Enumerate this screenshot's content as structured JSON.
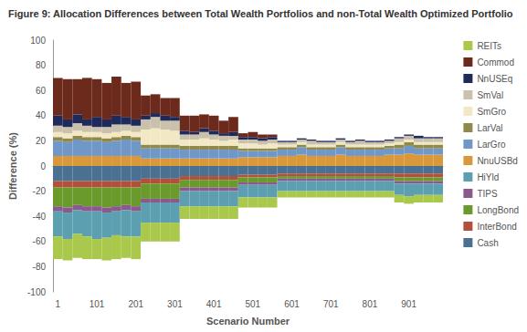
{
  "chart_data": {
    "type": "bar",
    "title": "Figure 9: Allocation Differences between Total Wealth Portfolios and non-Total Wealth Optimized Portfolio",
    "x_label": "Scenario Number",
    "y_label": "Difference (%)",
    "categories": [
      "1",
      null,
      null,
      null,
      "101",
      null,
      null,
      null,
      "201",
      null,
      null,
      null,
      "301",
      null,
      null,
      null,
      "401",
      null,
      null,
      null,
      "501",
      null,
      null,
      null,
      "601",
      null,
      null,
      null,
      "701",
      null,
      null,
      null,
      "801",
      null,
      null,
      null,
      "901",
      null,
      null,
      null
    ],
    "series": [
      {
        "name": "REITs",
        "color": "#a9c84c",
        "values": [
          -18,
          -17,
          -19,
          -18,
          -16,
          -18,
          -19,
          -17,
          -18,
          -15,
          -15,
          -15,
          -15,
          -10,
          -10,
          -10,
          -10,
          -10,
          -10,
          -8,
          -8,
          -8,
          -8,
          -5,
          -5,
          -5,
          -5,
          -5,
          -5,
          -5,
          -5,
          -5,
          -5,
          -5,
          -5,
          -6,
          -6,
          -6,
          -6,
          -6
        ]
      },
      {
        "name": "Commod",
        "color": "#6b2a1c",
        "values": [
          30,
          32,
          28,
          33,
          30,
          29,
          31,
          27,
          30,
          16,
          15,
          14,
          15,
          12,
          13,
          11,
          12,
          10,
          12,
          3,
          4,
          3,
          2,
          0,
          0,
          0,
          0,
          0,
          0,
          0,
          0,
          0,
          0,
          0,
          0,
          0,
          0,
          0,
          0,
          0
        ]
      },
      {
        "name": "NnUSEq",
        "color": "#1f2a5c",
        "values": [
          8,
          6,
          7,
          5,
          8,
          6,
          7,
          6,
          5,
          3,
          3,
          4,
          3,
          3,
          2,
          3,
          3,
          2,
          3,
          2,
          2,
          2,
          2,
          1,
          1,
          1,
          1,
          1,
          1,
          1,
          1,
          1,
          1,
          1,
          1,
          1,
          1,
          2,
          1,
          1
        ]
      },
      {
        "name": "SmVal",
        "color": "#c9c1ab",
        "values": [
          5,
          5,
          6,
          5,
          4,
          5,
          6,
          5,
          5,
          8,
          9,
          7,
          8,
          4,
          4,
          5,
          4,
          4,
          3,
          3,
          3,
          3,
          3,
          2,
          2,
          2,
          3,
          2,
          2,
          2,
          2,
          3,
          2,
          2,
          2,
          3,
          3,
          3,
          3,
          3
        ]
      },
      {
        "name": "SmGro",
        "color": "#f3e8c4",
        "values": [
          4,
          4,
          4,
          4,
          4,
          4,
          4,
          4,
          4,
          12,
          13,
          12,
          11,
          5,
          5,
          6,
          5,
          4,
          5,
          4,
          4,
          3,
          4,
          2,
          2,
          2,
          2,
          2,
          2,
          2,
          2,
          2,
          2,
          2,
          2,
          2,
          2,
          2,
          2,
          2
        ]
      },
      {
        "name": "LarVal",
        "color": "#8f8a4c",
        "values": [
          3,
          3,
          3,
          3,
          3,
          3,
          3,
          3,
          3,
          3,
          3,
          3,
          3,
          3,
          3,
          3,
          3,
          3,
          3,
          2,
          2,
          2,
          2,
          2,
          2,
          2,
          2,
          2,
          2,
          2,
          2,
          2,
          2,
          2,
          2,
          3,
          3,
          3,
          3,
          3
        ]
      },
      {
        "name": "LarGro",
        "color": "#6f98c9",
        "values": [
          12,
          11,
          13,
          12,
          12,
          11,
          12,
          13,
          12,
          8,
          8,
          8,
          8,
          7,
          7,
          7,
          7,
          7,
          7,
          5,
          5,
          5,
          5,
          5,
          5,
          6,
          5,
          5,
          5,
          6,
          5,
          5,
          5,
          5,
          5,
          5,
          6,
          5,
          5,
          5
        ]
      },
      {
        "name": "NnuUSBd",
        "color": "#d9993a",
        "values": [
          8,
          8,
          8,
          8,
          8,
          8,
          8,
          8,
          8,
          6,
          6,
          6,
          6,
          6,
          6,
          6,
          6,
          6,
          6,
          7,
          7,
          7,
          7,
          8,
          8,
          9,
          8,
          8,
          8,
          9,
          8,
          8,
          8,
          8,
          9,
          9,
          10,
          9,
          9,
          9
        ]
      },
      {
        "name": "HiYld",
        "color": "#5b9fb1",
        "values": [
          -20,
          -21,
          -19,
          -20,
          -22,
          -20,
          -19,
          -21,
          -20,
          -16,
          -16,
          -16,
          -16,
          -12,
          -12,
          -12,
          -12,
          -12,
          -12,
          -10,
          -10,
          -10,
          -10,
          -8,
          -8,
          -8,
          -8,
          -8,
          -8,
          -8,
          -8,
          -8,
          -8,
          -8,
          -8,
          -9,
          -10,
          -9,
          -9,
          -9
        ]
      },
      {
        "name": "TIPS",
        "color": "#8a5a8c",
        "values": [
          -4,
          -4,
          -4,
          -4,
          -4,
          -4,
          -4,
          -4,
          -4,
          -3,
          -3,
          -3,
          -3,
          -3,
          -3,
          -3,
          -3,
          -3,
          -3,
          -2,
          -2,
          -2,
          -2,
          -2,
          -2,
          -2,
          -2,
          -2,
          -2,
          -2,
          -2,
          -2,
          -2,
          -2,
          -2,
          -2,
          -2,
          -2,
          -2,
          -2
        ]
      },
      {
        "name": "LongBond",
        "color": "#6a9a2c",
        "values": [
          -15,
          -16,
          -14,
          -15,
          -15,
          -16,
          -15,
          -14,
          -15,
          -12,
          -12,
          -12,
          -12,
          -6,
          -6,
          -6,
          -6,
          -6,
          -6,
          -4,
          -4,
          -4,
          -4,
          -2,
          -2,
          -2,
          -2,
          -2,
          -2,
          -2,
          -2,
          -2,
          -2,
          -2,
          -2,
          -3,
          -3,
          -3,
          -3,
          -3
        ]
      },
      {
        "name": "InterBond",
        "color": "#b2503a",
        "values": [
          -5,
          -5,
          -5,
          -5,
          -5,
          -5,
          -5,
          -5,
          -5,
          -4,
          -4,
          -4,
          -4,
          -3,
          -3,
          -3,
          -3,
          -3,
          -3,
          -2,
          -2,
          -2,
          -2,
          -2,
          -2,
          -2,
          -2,
          -2,
          -2,
          -2,
          -2,
          -2,
          -2,
          -2,
          -2,
          -3,
          -3,
          -3,
          -3,
          -3
        ]
      },
      {
        "name": "Cash",
        "color": "#4a7092",
        "values": [
          -12,
          -12,
          -12,
          -12,
          -12,
          -12,
          -12,
          -12,
          -12,
          -10,
          -10,
          -10,
          -10,
          -8,
          -8,
          -8,
          -8,
          -8,
          -8,
          -7,
          -7,
          -7,
          -7,
          -6,
          -6,
          -6,
          -6,
          -6,
          -6,
          -6,
          -6,
          -6,
          -6,
          -6,
          -6,
          -6,
          -6,
          -6,
          -6,
          -6
        ]
      }
    ],
    "ylim": [
      -100,
      100
    ],
    "yticks": [
      -100,
      -80,
      -60,
      -40,
      -20,
      0,
      20,
      40,
      60,
      80,
      100
    ],
    "stacked": true,
    "legend": "right",
    "grid": false
  }
}
